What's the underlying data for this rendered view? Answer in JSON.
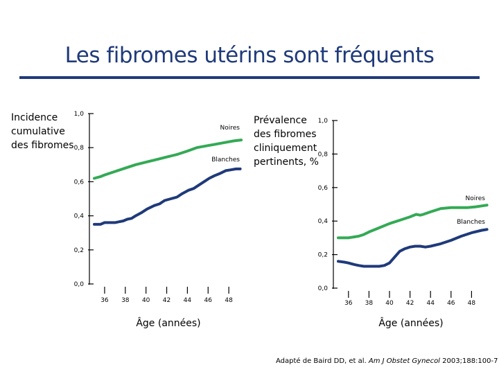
{
  "title": "Les fibromes utérins sont fréquents",
  "colors": {
    "title": "#1f3a7a",
    "rule": "#1f3a7a",
    "noires": "#2f4f8f",
    "blanches": "#33aa55",
    "axis": "#000000"
  },
  "credit": {
    "prefix": "Adapté de Baird DD, et al. ",
    "journal": "Am J Obstet Gynecol",
    "suffix": " 2003;188:100-7"
  },
  "chart_data": [
    {
      "type": "line",
      "ylabel": "Incidence\ncumulative\ndes fibromes",
      "xlabel": "Âge (années)",
      "xlim": [
        35,
        50
      ],
      "ylim": [
        0,
        1
      ],
      "xticks": [
        "36",
        "38",
        "40",
        "42",
        "44",
        "46",
        "48"
      ],
      "yticks": [
        "0,0",
        "0,2",
        "0,4",
        "0,6",
        "0,8",
        "1,0"
      ],
      "series": [
        {
          "name": "Noires",
          "color": "#33aa55",
          "x": [
            35.0,
            35.6,
            36.0,
            37.0,
            38.0,
            39.0,
            40.0,
            41.0,
            42.0,
            43.0,
            44.0,
            44.9,
            45.8,
            46.7,
            47.6,
            48.5,
            49.2
          ],
          "y": [
            0.62,
            0.63,
            0.64,
            0.66,
            0.68,
            0.7,
            0.715,
            0.73,
            0.745,
            0.76,
            0.78,
            0.8,
            0.81,
            0.82,
            0.83,
            0.84,
            0.845
          ]
        },
        {
          "name": "Blanches",
          "color": "#1f3a7a",
          "x": [
            35.0,
            35.6,
            36.0,
            36.6,
            37.0,
            37.4,
            37.8,
            38.2,
            38.6,
            39.0,
            39.6,
            40.1,
            40.8,
            41.3,
            41.8,
            42.4,
            43.0,
            43.5,
            44.1,
            44.6,
            45.1,
            45.6,
            46.1,
            46.6,
            47.2,
            47.7,
            48.2,
            48.7,
            49.1
          ],
          "y": [
            0.35,
            0.35,
            0.36,
            0.36,
            0.36,
            0.365,
            0.37,
            0.38,
            0.385,
            0.4,
            0.42,
            0.44,
            0.46,
            0.47,
            0.49,
            0.5,
            0.51,
            0.53,
            0.55,
            0.56,
            0.58,
            0.6,
            0.62,
            0.635,
            0.65,
            0.665,
            0.67,
            0.675,
            0.675
          ]
        }
      ]
    },
    {
      "type": "line",
      "ylabel": "Prévalence\ndes fibromes\ncliniquement\npertinents, %",
      "xlabel": "Âge (années)",
      "xlim": [
        35,
        50
      ],
      "ylim": [
        0,
        1
      ],
      "xticks": [
        "36",
        "38",
        "40",
        "42",
        "44",
        "46",
        "48"
      ],
      "yticks": [
        "0,0",
        "0,2",
        "0,4",
        "0,6",
        "0,8",
        "1,0"
      ],
      "series": [
        {
          "name": "Noires",
          "color": "#33aa55",
          "x": [
            35.0,
            36.0,
            37.0,
            37.5,
            38.0,
            39.0,
            40.0,
            41.0,
            42.0,
            42.6,
            43.0,
            43.3,
            44.0,
            45.0,
            46.0,
            47.0,
            47.6,
            48.4,
            49.5
          ],
          "y": [
            0.3,
            0.3,
            0.31,
            0.32,
            0.335,
            0.36,
            0.385,
            0.405,
            0.425,
            0.44,
            0.435,
            0.44,
            0.455,
            0.475,
            0.48,
            0.48,
            0.48,
            0.485,
            0.495
          ]
        },
        {
          "name": "Blanches",
          "color": "#1f3a7a",
          "x": [
            35.0,
            35.6,
            36.0,
            36.6,
            37.0,
            37.5,
            38.0,
            38.5,
            39.0,
            39.5,
            40.0,
            40.5,
            41.0,
            41.5,
            42.0,
            42.5,
            43.0,
            43.5,
            44.0,
            45.0,
            46.0,
            47.0,
            48.0,
            49.0,
            49.5
          ],
          "y": [
            0.16,
            0.155,
            0.15,
            0.14,
            0.135,
            0.13,
            0.13,
            0.13,
            0.13,
            0.135,
            0.15,
            0.185,
            0.22,
            0.235,
            0.245,
            0.25,
            0.25,
            0.245,
            0.25,
            0.265,
            0.285,
            0.31,
            0.33,
            0.345,
            0.35
          ]
        }
      ]
    }
  ]
}
